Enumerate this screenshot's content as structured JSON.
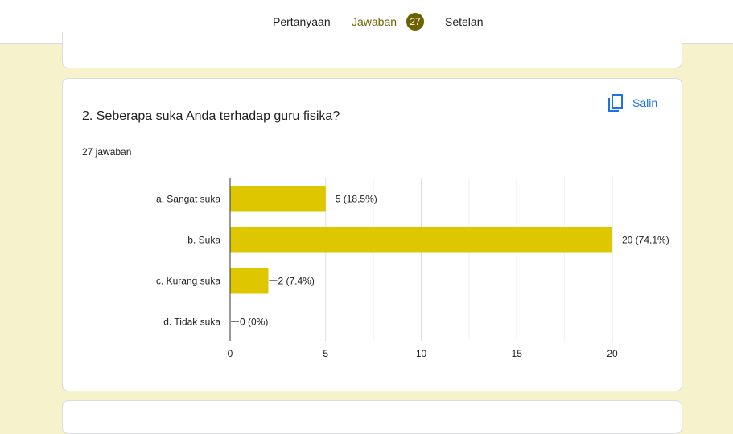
{
  "tabs": {
    "questions": "Pertanyaan",
    "responses": "Jawaban",
    "responses_count": "27",
    "settings": "Setelan"
  },
  "question": {
    "title": "2. Seberapa suka Anda terhadap guru fisika?",
    "response_count": "27 jawaban",
    "copy_label": "Salin"
  },
  "colors": {
    "bar": "#dfc700",
    "accent": "#6b6200",
    "background": "#f5f2cc",
    "link": "#1a73e8"
  },
  "chart_data": {
    "type": "bar",
    "orientation": "horizontal",
    "categories": [
      "a. Sangat suka",
      "b. Suka",
      "c. Kurang suka",
      "d. Tidak suka"
    ],
    "values": [
      5,
      20,
      2,
      0
    ],
    "labels": [
      "5 (18,5%)",
      "20 (74,1%)",
      "2 (7,4%)",
      "0 (0%)"
    ],
    "xlim": [
      0,
      20
    ],
    "xticks": [
      "0",
      "5",
      "10",
      "15",
      "20"
    ],
    "grid": true
  }
}
